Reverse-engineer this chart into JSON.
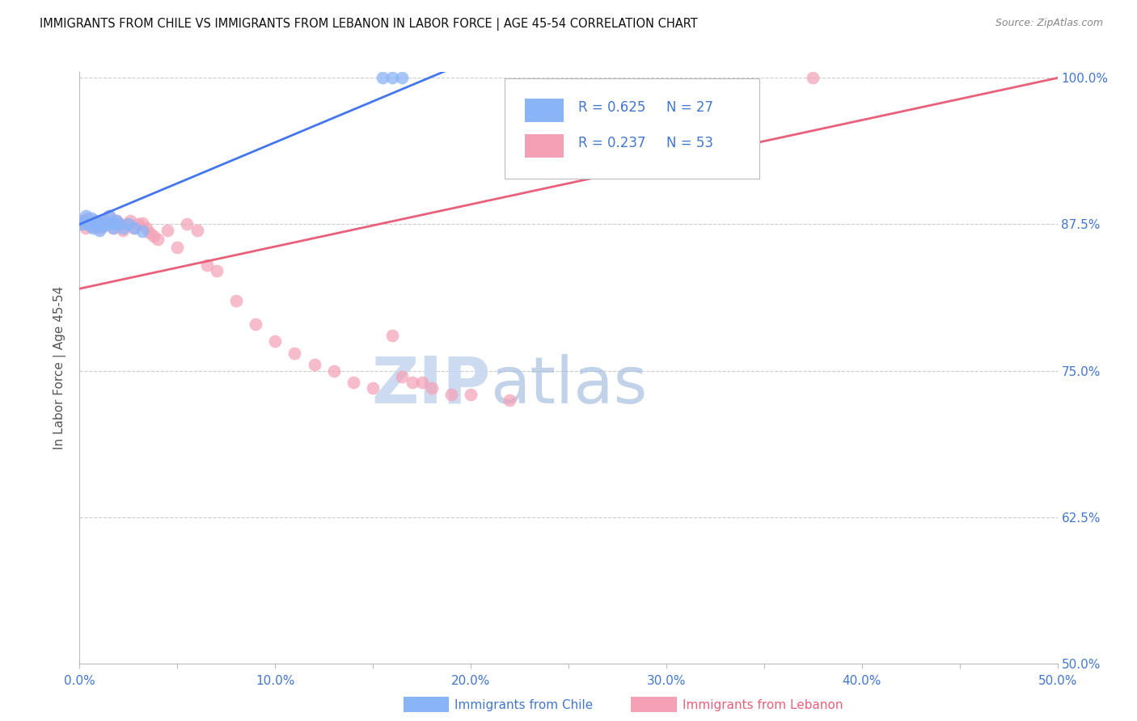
{
  "title": "IMMIGRANTS FROM CHILE VS IMMIGRANTS FROM LEBANON IN LABOR FORCE | AGE 45-54 CORRELATION CHART",
  "source": "Source: ZipAtlas.com",
  "ylabel": "In Labor Force | Age 45-54",
  "xlim": [
    0.0,
    0.5
  ],
  "ylim": [
    0.5,
    1.005
  ],
  "xtick_labels": [
    "0.0%",
    "",
    "10.0%",
    "",
    "20.0%",
    "",
    "30.0%",
    "",
    "40.0%",
    "",
    "50.0%"
  ],
  "xtick_vals": [
    0.0,
    0.05,
    0.1,
    0.15,
    0.2,
    0.25,
    0.3,
    0.35,
    0.4,
    0.45,
    0.5
  ],
  "ytick_labels": [
    "100.0%",
    "87.5%",
    "75.0%",
    "62.5%",
    "50.0%"
  ],
  "ytick_vals": [
    1.0,
    0.875,
    0.75,
    0.625,
    0.5
  ],
  "chile_color": "#8ab4f8",
  "lebanon_color": "#f4a0b5",
  "chile_line_color": "#4477ee",
  "lebanon_line_color": "#e8607a",
  "chile_R": 0.625,
  "chile_N": 27,
  "lebanon_R": 0.237,
  "lebanon_N": 53,
  "watermark_zip_color": "#c8d8f0",
  "watermark_atlas_color": "#a8c0e0",
  "background_color": "#ffffff",
  "grid_color": "#cccccc",
  "axis_label_color": "#4477cc",
  "title_color": "#111111",
  "chile_x": [
    0.001,
    0.002,
    0.003,
    0.004,
    0.005,
    0.006,
    0.007,
    0.008,
    0.009,
    0.01,
    0.011,
    0.012,
    0.013,
    0.014,
    0.015,
    0.016,
    0.017,
    0.018,
    0.019,
    0.02,
    0.022,
    0.025,
    0.028,
    0.032,
    0.155,
    0.16,
    0.165
  ],
  "chile_y": [
    0.875,
    0.878,
    0.882,
    0.876,
    0.874,
    0.88,
    0.872,
    0.878,
    0.875,
    0.87,
    0.876,
    0.873,
    0.878,
    0.875,
    0.882,
    0.876,
    0.872,
    0.875,
    0.878,
    0.875,
    0.872,
    0.875,
    0.872,
    0.869,
    1.0,
    1.0,
    1.0
  ],
  "lebanon_x": [
    0.001,
    0.002,
    0.003,
    0.004,
    0.005,
    0.006,
    0.007,
    0.008,
    0.009,
    0.01,
    0.011,
    0.012,
    0.013,
    0.014,
    0.015,
    0.016,
    0.017,
    0.018,
    0.019,
    0.02,
    0.022,
    0.024,
    0.026,
    0.028,
    0.03,
    0.032,
    0.034,
    0.036,
    0.038,
    0.04,
    0.045,
    0.05,
    0.055,
    0.06,
    0.065,
    0.07,
    0.08,
    0.09,
    0.1,
    0.11,
    0.12,
    0.13,
    0.14,
    0.15,
    0.16,
    0.165,
    0.17,
    0.175,
    0.18,
    0.19,
    0.2,
    0.22,
    0.375
  ],
  "lebanon_y": [
    0.878,
    0.875,
    0.872,
    0.88,
    0.876,
    0.875,
    0.873,
    0.878,
    0.875,
    0.872,
    0.876,
    0.873,
    0.878,
    0.875,
    0.882,
    0.876,
    0.872,
    0.875,
    0.878,
    0.875,
    0.87,
    0.875,
    0.878,
    0.872,
    0.875,
    0.876,
    0.872,
    0.868,
    0.865,
    0.862,
    0.87,
    0.855,
    0.875,
    0.87,
    0.84,
    0.835,
    0.81,
    0.79,
    0.775,
    0.765,
    0.755,
    0.75,
    0.74,
    0.735,
    0.78,
    0.745,
    0.74,
    0.74,
    0.735,
    0.73,
    0.73,
    0.725,
    1.0
  ]
}
